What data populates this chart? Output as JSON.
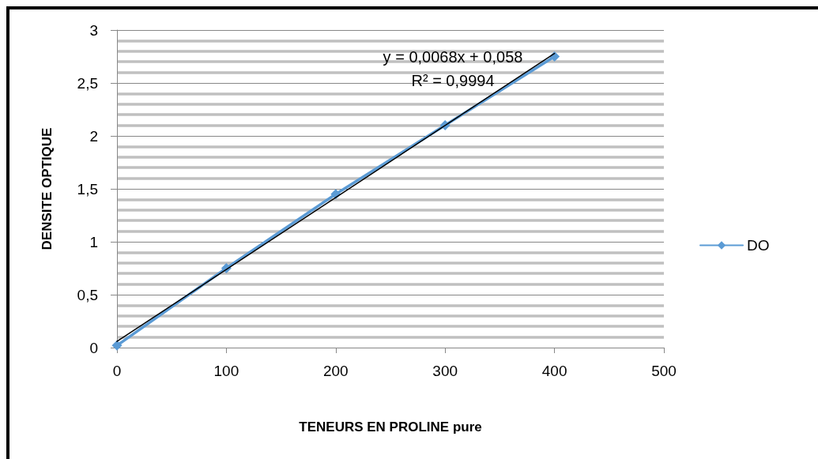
{
  "chart_data": {
    "type": "line",
    "xlabel": "TENEURS EN PROLINE pure",
    "ylabel": "DENSITE OPTIQUE",
    "annotations": [
      "y = 0,0068x + 0,058",
      "R² = 0,9994"
    ],
    "series": [
      {
        "name": "DO",
        "color": "#5b9bd5",
        "x": [
          0,
          100,
          200,
          300,
          400
        ],
        "values": [
          0.02,
          0.75,
          1.45,
          2.1,
          2.75
        ]
      },
      {
        "color": "#000000",
        "x": [
          0,
          400
        ],
        "values": [
          0.058,
          2.778
        ],
        "marker": "none"
      }
    ],
    "xlim": [
      0,
      500
    ],
    "xticks": [
      0,
      100,
      200,
      300,
      400,
      500
    ],
    "ylim": [
      0,
      3
    ],
    "yticks": [
      0,
      {
        "value": 0.5,
        "label": "0,5"
      },
      1,
      {
        "value": 1.5,
        "label": "1,5"
      },
      2,
      {
        "value": 2.5,
        "label": "2,5"
      },
      3
    ],
    "grid": "y",
    "legend": "right",
    "marker": "diamond",
    "line_style": "solid"
  }
}
